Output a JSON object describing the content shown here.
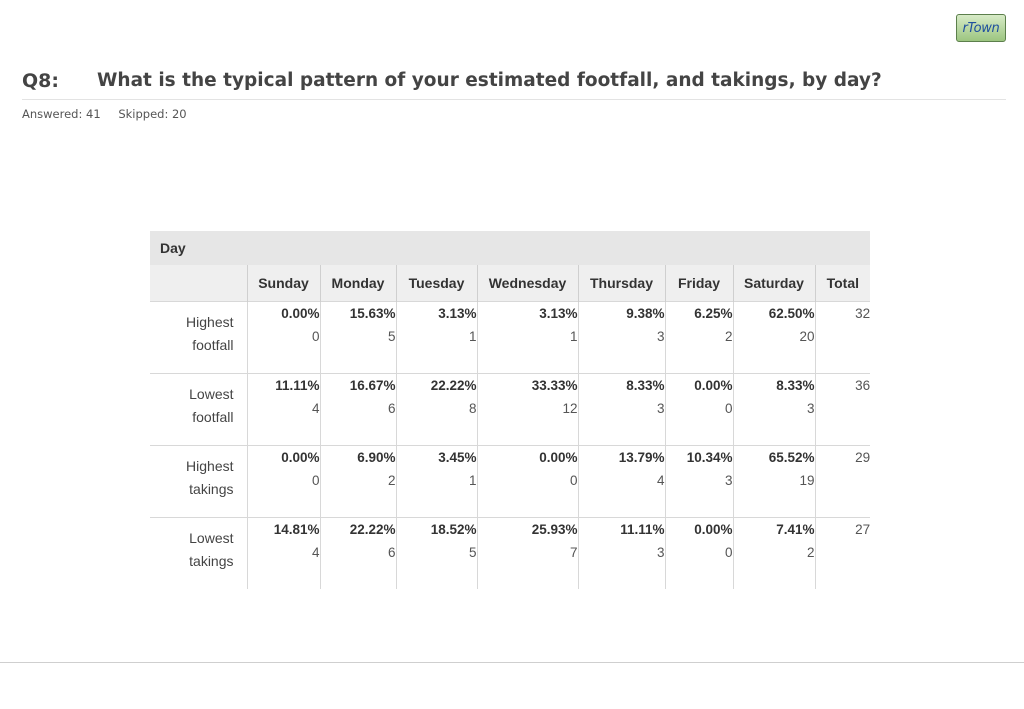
{
  "logo": {
    "text": "rTown"
  },
  "question": {
    "number": "Q8:",
    "title": "What is the typical pattern of your estimated footfall, and takings, by day?"
  },
  "meta": {
    "answered": "Answered: 41",
    "skipped": "Skipped: 20"
  },
  "table": {
    "group_header": "Day",
    "columns": [
      "Sunday",
      "Monday",
      "Tuesday",
      "Wednesday",
      "Thursday",
      "Friday",
      "Saturday",
      "Total"
    ],
    "rows": [
      {
        "label_line1": "Highest",
        "label_line2": "footfall",
        "cells": [
          {
            "pct": "0.00%",
            "count": "0"
          },
          {
            "pct": "15.63%",
            "count": "5"
          },
          {
            "pct": "3.13%",
            "count": "1"
          },
          {
            "pct": "3.13%",
            "count": "1"
          },
          {
            "pct": "9.38%",
            "count": "3"
          },
          {
            "pct": "6.25%",
            "count": "2"
          },
          {
            "pct": "62.50%",
            "count": "20"
          }
        ],
        "total": "32"
      },
      {
        "label_line1": "Lowest",
        "label_line2": "footfall",
        "cells": [
          {
            "pct": "11.11%",
            "count": "4"
          },
          {
            "pct": "16.67%",
            "count": "6"
          },
          {
            "pct": "22.22%",
            "count": "8"
          },
          {
            "pct": "33.33%",
            "count": "12"
          },
          {
            "pct": "8.33%",
            "count": "3"
          },
          {
            "pct": "0.00%",
            "count": "0"
          },
          {
            "pct": "8.33%",
            "count": "3"
          }
        ],
        "total": "36"
      },
      {
        "label_line1": "Highest",
        "label_line2": "takings",
        "cells": [
          {
            "pct": "0.00%",
            "count": "0"
          },
          {
            "pct": "6.90%",
            "count": "2"
          },
          {
            "pct": "3.45%",
            "count": "1"
          },
          {
            "pct": "0.00%",
            "count": "0"
          },
          {
            "pct": "13.79%",
            "count": "4"
          },
          {
            "pct": "10.34%",
            "count": "3"
          },
          {
            "pct": "65.52%",
            "count": "19"
          }
        ],
        "total": "29"
      },
      {
        "label_line1": "Lowest",
        "label_line2": "takings",
        "cells": [
          {
            "pct": "14.81%",
            "count": "4"
          },
          {
            "pct": "22.22%",
            "count": "6"
          },
          {
            "pct": "18.52%",
            "count": "5"
          },
          {
            "pct": "25.93%",
            "count": "7"
          },
          {
            "pct": "11.11%",
            "count": "3"
          },
          {
            "pct": "0.00%",
            "count": "0"
          },
          {
            "pct": "7.41%",
            "count": "2"
          }
        ],
        "total": "27"
      }
    ]
  }
}
